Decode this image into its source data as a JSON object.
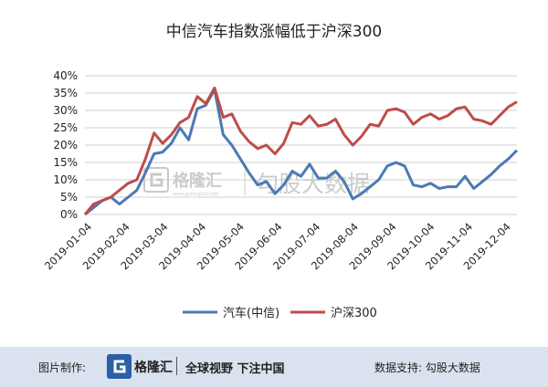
{
  "chart_data": {
    "type": "line",
    "title": "中信汽车指数涨幅低于沪深300",
    "xlabel": "",
    "ylabel": "",
    "ylim": [
      0,
      40
    ],
    "yticks": [
      "0%",
      "5%",
      "10%",
      "15%",
      "20%",
      "25%",
      "30%",
      "35%",
      "40%"
    ],
    "xtick_labels": [
      "2019-01-04",
      "2019-02-04",
      "2019-03-04",
      "2019-04-04",
      "2019-05-04",
      "2019-06-04",
      "2019-07-04",
      "2019-08-04",
      "2019-09-04",
      "2019-10-04",
      "2019-11-04",
      "2019-12-04"
    ],
    "grid": "horizontal",
    "legend_position": "bottom",
    "series": [
      {
        "name": "汽车(中信)",
        "color": "#4a7ab5",
        "values": [
          0,
          2,
          4,
          5,
          3,
          5,
          7,
          12,
          17.5,
          18,
          20.5,
          25,
          21.5,
          30.5,
          31.5,
          36,
          23,
          20,
          16,
          12,
          8.5,
          9.5,
          6,
          8.5,
          12.5,
          11,
          14.5,
          10.5,
          10.5,
          12.5,
          9.5,
          4.5,
          6,
          8,
          10,
          14,
          15,
          14,
          8.5,
          8,
          9,
          7.5,
          8,
          8,
          11,
          7.5,
          9.5,
          11.5,
          14,
          16,
          18.5
        ]
      },
      {
        "name": "沪深300",
        "color": "#bf4b4b",
        "values": [
          0,
          3,
          4,
          5,
          7,
          9,
          10,
          16,
          23.5,
          20.5,
          23,
          26.5,
          28,
          34,
          32,
          36.5,
          28,
          29,
          24,
          21,
          19,
          20,
          17.5,
          20.5,
          26.5,
          26,
          28.5,
          25.5,
          26,
          27.5,
          23,
          20,
          22.5,
          26,
          25.5,
          30,
          30.5,
          29.5,
          26,
          28,
          29,
          27.5,
          28.5,
          30.5,
          31,
          27.5,
          27,
          26,
          28.5,
          31,
          32.5
        ]
      }
    ]
  },
  "watermark": {
    "logo_text": "格隆汇",
    "logo_sub": "www.gelonghui.com",
    "brand_text": "勾股大数据"
  },
  "footer": {
    "made_by": "图片制作:",
    "logo_text": "格隆汇",
    "slogan": "全球视野 下注中国",
    "data_support": "数据支持:  勾股大数据"
  },
  "colors": {
    "footer_bg": "#d9e2ee",
    "grid": "#cfcfcf"
  }
}
